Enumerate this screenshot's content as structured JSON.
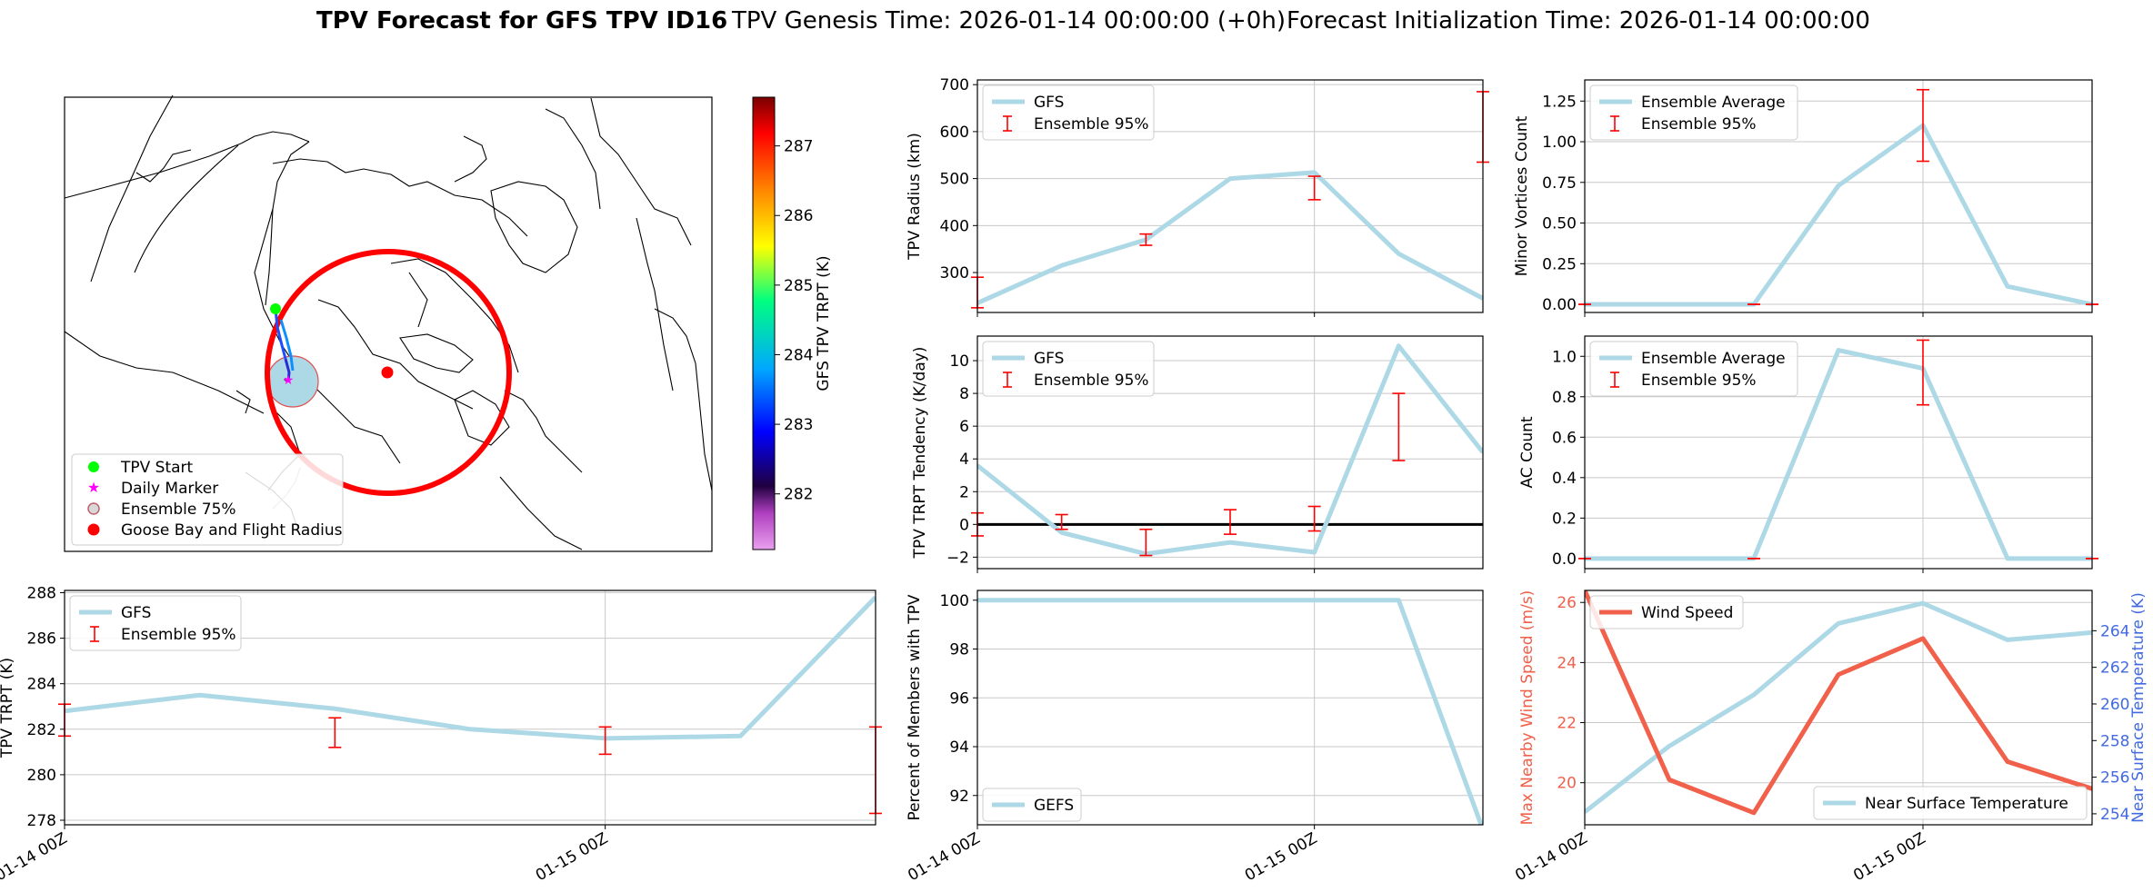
{
  "title": {
    "bold": "TPV Forecast for GFS TPV ID16",
    "genesis": "TPV Genesis Time: 2026-01-14 00:00:00 (+0h)",
    "init": "Forecast Initialization Time: 2026-01-14 00:00:00"
  },
  "colors": {
    "series": "#add8e6",
    "errorbar": "#ff0000",
    "wind": "#f0604a",
    "temp_axis": "#4169e1",
    "grid": "#c8c8c8",
    "track_start": "#00ff00",
    "daily_marker": "#ff00ff",
    "ensemble75": "#add8e6",
    "goose_bay": "#ff0000"
  },
  "time_ticks": [
    "01-14 00Z",
    "01-15 00Z"
  ],
  "map": {
    "legend": [
      "TPV Start",
      "Daily Marker",
      "Ensemble 75%",
      "Goose Bay and Flight Radius"
    ],
    "colorbar": {
      "label": "GFS TPV TRPT (K)",
      "ticks": [
        "282",
        "283",
        "284",
        "285",
        "286",
        "287"
      ],
      "range": [
        281.2,
        287.7
      ]
    }
  },
  "chart_data": [
    {
      "id": "radius",
      "type": "line",
      "ylabel": "TPV Radius (km)",
      "ylim": [
        215,
        710
      ],
      "yticks": [
        "300",
        "400",
        "500",
        "600",
        "700"
      ],
      "ytick_values": [
        300,
        400,
        500,
        600,
        700
      ],
      "x_hours": [
        0,
        6,
        12,
        18,
        24,
        30,
        36
      ],
      "series": [
        {
          "name": "GFS",
          "values": [
            235,
            315,
            370,
            500,
            513,
            340,
            245
          ]
        }
      ],
      "errorbars": [
        [
          0,
          225,
          290
        ],
        [
          12,
          358,
          382
        ],
        [
          24,
          455,
          505
        ],
        [
          36,
          535,
          685
        ]
      ],
      "legend": [
        "GFS",
        "Ensemble 95%"
      ]
    },
    {
      "id": "minor",
      "type": "line",
      "ylabel": "Minor Vortices Count",
      "ylim": [
        -0.05,
        1.38
      ],
      "yticks": [
        "0.00",
        "0.25",
        "0.50",
        "0.75",
        "1.00",
        "1.25"
      ],
      "ytick_values": [
        0,
        0.25,
        0.5,
        0.75,
        1.0,
        1.25
      ],
      "x_hours": [
        0,
        6,
        12,
        18,
        24,
        30,
        36
      ],
      "series": [
        {
          "name": "Ensemble Average",
          "values": [
            0,
            0,
            0,
            0.73,
            1.1,
            0.11,
            0.0
          ]
        }
      ],
      "errorbars": [
        [
          0,
          0,
          0
        ],
        [
          12,
          0,
          0
        ],
        [
          24,
          0.88,
          1.32
        ],
        [
          36,
          0,
          0
        ]
      ],
      "legend": [
        "Ensemble Average",
        "Ensemble 95%"
      ]
    },
    {
      "id": "tendency",
      "type": "line",
      "ylabel": "TPV TRPT Tendency (K/day)",
      "ylim": [
        -2.7,
        11.5
      ],
      "yticks": [
        "−2",
        "0",
        "2",
        "4",
        "6",
        "8",
        "10"
      ],
      "ytick_values": [
        -2,
        0,
        2,
        4,
        6,
        8,
        10
      ],
      "zero_line": true,
      "x_hours": [
        0,
        6,
        12,
        18,
        24,
        30,
        36
      ],
      "series": [
        {
          "name": "GFS",
          "values": [
            3.6,
            -0.5,
            -1.8,
            -1.1,
            -1.7,
            10.9,
            4.4
          ]
        }
      ],
      "errorbars": [
        [
          0,
          -0.7,
          0.7
        ],
        [
          6,
          -0.3,
          0.6
        ],
        [
          12,
          -1.9,
          -0.3
        ],
        [
          18,
          -0.6,
          0.9
        ],
        [
          24,
          -0.4,
          1.1
        ],
        [
          30,
          3.9,
          8.0
        ]
      ],
      "legend": [
        "GFS",
        "Ensemble 95%"
      ]
    },
    {
      "id": "ac",
      "type": "line",
      "ylabel": "AC Count",
      "ylim": [
        -0.05,
        1.1
      ],
      "yticks": [
        "0.0",
        "0.2",
        "0.4",
        "0.6",
        "0.8",
        "1.0"
      ],
      "ytick_values": [
        0,
        0.2,
        0.4,
        0.6,
        0.8,
        1.0
      ],
      "x_hours": [
        0,
        6,
        12,
        18,
        24,
        30,
        36
      ],
      "series": [
        {
          "name": "Ensemble Average",
          "values": [
            0,
            0,
            0,
            1.03,
            0.94,
            0,
            0
          ]
        }
      ],
      "errorbars": [
        [
          0,
          0,
          0
        ],
        [
          12,
          0,
          0
        ],
        [
          24,
          0.76,
          1.08
        ],
        [
          36,
          0,
          0
        ]
      ],
      "legend": [
        "Ensemble Average",
        "Ensemble 95%"
      ]
    },
    {
      "id": "trpt",
      "type": "line",
      "ylabel": "TPV TRPT (K)",
      "ylim": [
        277.8,
        288.1
      ],
      "yticks": [
        "278",
        "280",
        "282",
        "284",
        "286",
        "288"
      ],
      "ytick_values": [
        278,
        280,
        282,
        284,
        286,
        288
      ],
      "x_hours": [
        0,
        6,
        12,
        18,
        24,
        30,
        36
      ],
      "series": [
        {
          "name": "GFS",
          "values": [
            282.8,
            283.5,
            282.9,
            282.0,
            281.6,
            281.7,
            287.8
          ]
        }
      ],
      "errorbars": [
        [
          0,
          281.7,
          283.1
        ],
        [
          12,
          281.2,
          282.5
        ],
        [
          24,
          280.9,
          282.1
        ],
        [
          36,
          278.3,
          282.1
        ]
      ],
      "legend": [
        "GFS",
        "Ensemble 95%"
      ]
    },
    {
      "id": "percent",
      "type": "line",
      "ylabel": "Percent of Members with TPV",
      "ylim": [
        90.8,
        100.4
      ],
      "yticks": [
        "92",
        "94",
        "96",
        "98",
        "100"
      ],
      "ytick_values": [
        92,
        94,
        96,
        98,
        100
      ],
      "x_hours": [
        0,
        6,
        12,
        18,
        24,
        30,
        36
      ],
      "series": [
        {
          "name": "GEFS",
          "values": [
            100,
            100,
            100,
            100,
            100,
            100,
            90.6
          ]
        }
      ],
      "errorbars": [],
      "legend": [
        "GEFS"
      ]
    },
    {
      "id": "wind",
      "type": "line",
      "ylabel": "Max Nearby Wind Speed (m/s)",
      "ylabel2": "Near Surface Temperature (K)",
      "ylim": [
        18.6,
        26.4
      ],
      "yticks": [
        "20",
        "22",
        "24",
        "26"
      ],
      "ytick_values": [
        20,
        22,
        24,
        26
      ],
      "ylim2": [
        253.4,
        266.2
      ],
      "yticks2": [
        "254",
        "256",
        "258",
        "260",
        "262",
        "264"
      ],
      "ytick_values2": [
        254,
        256,
        258,
        260,
        262,
        264
      ],
      "x_hours": [
        0,
        6,
        12,
        18,
        24,
        30,
        36
      ],
      "series": [
        {
          "name": "Wind Speed",
          "values": [
            26.4,
            20.1,
            19.0,
            23.6,
            24.8,
            20.7,
            19.8
          ]
        },
        {
          "name": "Near Surface Temperature",
          "values": [
            254.1,
            257.7,
            260.5,
            264.4,
            265.5,
            263.5,
            263.9
          ]
        }
      ],
      "errorbars": [],
      "legend": [
        "Wind Speed"
      ],
      "legend2": [
        "Near Surface Temperature"
      ]
    }
  ]
}
